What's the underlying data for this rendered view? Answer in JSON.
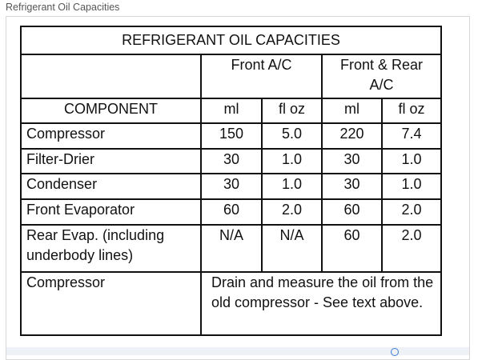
{
  "caption": "Refrigerant Oil Capacities",
  "table": {
    "title": "REFRIGERANT OIL CAPACITIES",
    "group_front": "Front A/C",
    "group_rear": "Front & Rear A/C",
    "col_component": "COMPONENT",
    "units": [
      "ml",
      "fl oz",
      "ml",
      "fl oz"
    ],
    "rows": [
      {
        "name": "Compressor",
        "values": [
          "150",
          "5.0",
          "220",
          "7.4"
        ]
      },
      {
        "name": "Filter-Drier",
        "values": [
          "30",
          "1.0",
          "30",
          "1.0"
        ]
      },
      {
        "name": "Condenser",
        "values": [
          "30",
          "1.0",
          "30",
          "1.0"
        ]
      },
      {
        "name": "Front Evaporator",
        "values": [
          "60",
          "2.0",
          "60",
          "2.0"
        ]
      },
      {
        "name": "Rear Evap. (including underbody lines)",
        "values": [
          "N/A",
          "N/A",
          "60",
          "2.0"
        ]
      }
    ],
    "note_row": {
      "name": "Compressor",
      "text": "Drain and measure the oil from the old compressor - See text above."
    }
  }
}
